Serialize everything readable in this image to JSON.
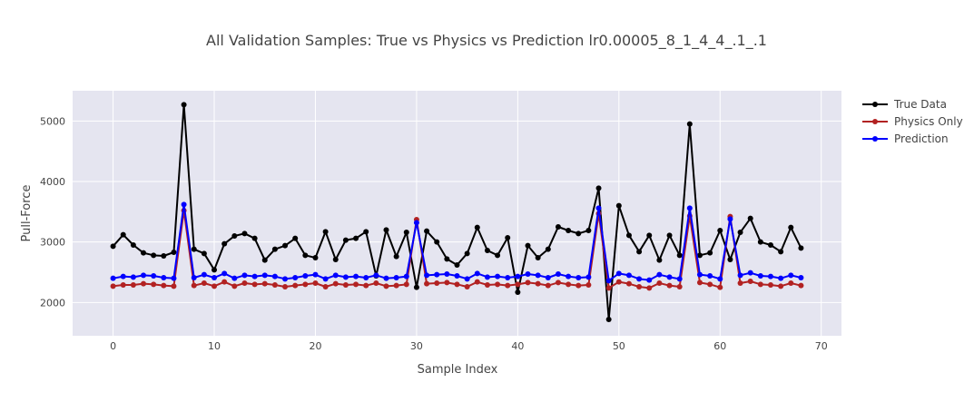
{
  "chart_data": {
    "type": "line",
    "title": "All Validation Samples: True vs Physics vs Prediction lr0.00005_8_1_4_4_.1_.1",
    "xlabel": "Sample Index",
    "ylabel": "Pull-Force",
    "xlim": [
      -4,
      72
    ],
    "ylim": [
      1450,
      5500
    ],
    "xticks": [
      0,
      10,
      20,
      30,
      40,
      50,
      60,
      70
    ],
    "yticks": [
      2000,
      3000,
      4000,
      5000
    ],
    "grid": true,
    "legend_position": "top-right",
    "x": [
      0,
      1,
      2,
      3,
      4,
      5,
      6,
      7,
      8,
      9,
      10,
      11,
      12,
      13,
      14,
      15,
      16,
      17,
      18,
      19,
      20,
      21,
      22,
      23,
      24,
      25,
      26,
      27,
      28,
      29,
      30,
      31,
      32,
      33,
      34,
      35,
      36,
      37,
      38,
      39,
      40,
      41,
      42,
      43,
      44,
      45,
      46,
      47,
      48,
      49,
      50,
      51,
      52,
      53,
      54,
      55,
      56,
      57,
      58,
      59,
      60,
      61,
      62,
      63,
      64,
      65,
      66,
      67,
      68
    ],
    "series": [
      {
        "name": "True Data",
        "color": "#000000",
        "values": [
          2930,
          3120,
          2950,
          2820,
          2780,
          2770,
          2830,
          5270,
          2880,
          2810,
          2540,
          2970,
          3100,
          3140,
          3060,
          2700,
          2880,
          2940,
          3060,
          2780,
          2740,
          3170,
          2710,
          3030,
          3060,
          3170,
          2440,
          3200,
          2760,
          3160,
          2250,
          3180,
          3000,
          2720,
          2620,
          2810,
          3240,
          2860,
          2780,
          3070,
          2170,
          2940,
          2740,
          2880,
          3250,
          3190,
          3140,
          3190,
          3890,
          1720,
          3600,
          3110,
          2840,
          3110,
          2700,
          3110,
          2780,
          4950,
          2780,
          2820,
          3190,
          2710,
          3160,
          3390,
          3000,
          2950,
          2840,
          3240,
          2900
        ]
      },
      {
        "name": "Physics Only",
        "color": "#b22222",
        "values": [
          2270,
          2290,
          2290,
          2310,
          2300,
          2280,
          2270,
          3520,
          2280,
          2320,
          2270,
          2340,
          2270,
          2320,
          2300,
          2310,
          2290,
          2260,
          2280,
          2300,
          2320,
          2260,
          2310,
          2290,
          2300,
          2280,
          2320,
          2270,
          2280,
          2300,
          3370,
          2310,
          2320,
          2330,
          2300,
          2260,
          2340,
          2290,
          2300,
          2280,
          2300,
          2330,
          2310,
          2280,
          2330,
          2300,
          2280,
          2290,
          3470,
          2240,
          2340,
          2310,
          2260,
          2240,
          2320,
          2280,
          2260,
          3430,
          2330,
          2300,
          2250,
          3420,
          2320,
          2350,
          2300,
          2290,
          2270,
          2320,
          2280
        ]
      },
      {
        "name": "Prediction",
        "color": "#0000ff",
        "values": [
          2400,
          2430,
          2420,
          2450,
          2440,
          2410,
          2400,
          3620,
          2410,
          2460,
          2410,
          2480,
          2400,
          2450,
          2430,
          2450,
          2430,
          2390,
          2410,
          2440,
          2460,
          2390,
          2450,
          2420,
          2430,
          2410,
          2450,
          2400,
          2410,
          2430,
          3320,
          2450,
          2460,
          2470,
          2440,
          2390,
          2480,
          2420,
          2430,
          2410,
          2430,
          2470,
          2450,
          2410,
          2470,
          2430,
          2410,
          2420,
          3560,
          2360,
          2480,
          2450,
          2390,
          2370,
          2460,
          2420,
          2390,
          3560,
          2460,
          2440,
          2390,
          3380,
          2450,
          2490,
          2440,
          2430,
          2400,
          2450,
          2410
        ]
      }
    ]
  }
}
